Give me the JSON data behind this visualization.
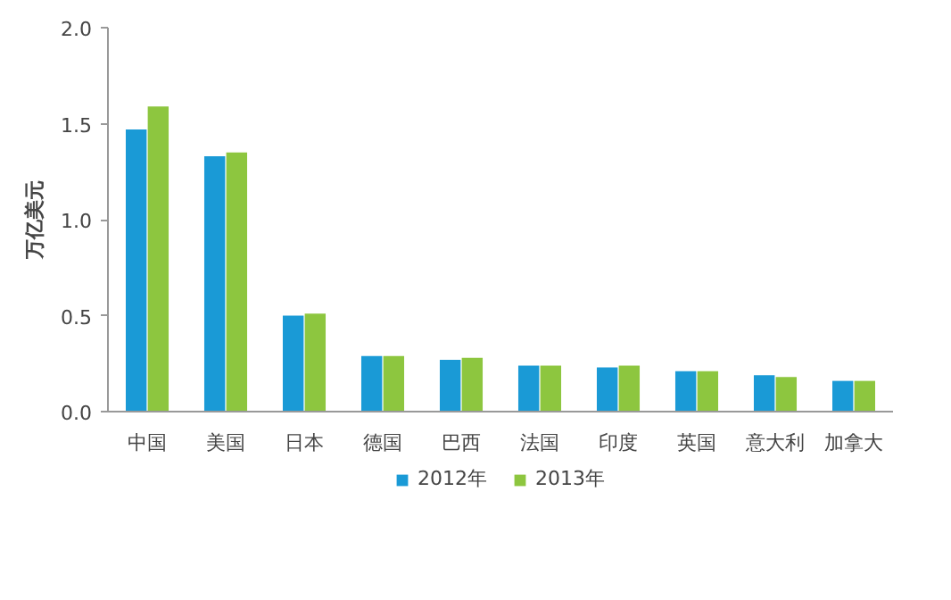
{
  "chart_data": {
    "type": "bar",
    "ylabel": "万亿美元",
    "categories": [
      "中国",
      "美国",
      "日本",
      "德国",
      "巴西",
      "法国",
      "印度",
      "英国",
      "意大利",
      "加拿大"
    ],
    "series": [
      {
        "name": "2012年",
        "color": "#1a9ad6",
        "values": [
          1.47,
          1.33,
          0.5,
          0.29,
          0.27,
          0.24,
          0.23,
          0.21,
          0.19,
          0.16
        ]
      },
      {
        "name": "2013年",
        "color": "#8dc63f",
        "values": [
          1.59,
          1.35,
          0.51,
          0.29,
          0.28,
          0.24,
          0.24,
          0.21,
          0.18,
          0.16
        ]
      }
    ],
    "ylim": [
      0,
      2.0
    ],
    "yticks": [
      {
        "value": 0,
        "label": "0.0"
      },
      {
        "value": 0.5,
        "label": "0.5"
      },
      {
        "value": 1,
        "label": "1.0"
      },
      {
        "value": 1.5,
        "label": "1.5"
      },
      {
        "value": 2,
        "label": "2.0"
      }
    ],
    "legend": "bottom",
    "grid": false
  }
}
